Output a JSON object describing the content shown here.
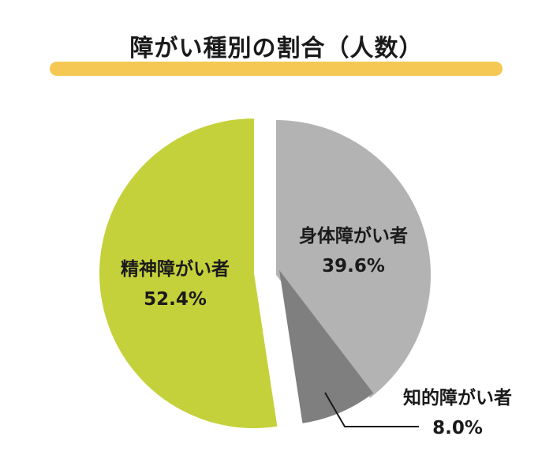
{
  "chart_data": {
    "type": "pie",
    "title": "障がい種別の割合（人数）",
    "slices": [
      {
        "label": "身体障がい者",
        "value": 39.6,
        "value_label": "39.6%",
        "color": "#b3b3b3"
      },
      {
        "label": "知的障がい者",
        "value": 8.0,
        "value_label": "8.0%",
        "color": "#7f7f7f"
      },
      {
        "label": "精神障がい者",
        "value": 52.4,
        "value_label": "52.4%",
        "color": "#c5d13b"
      }
    ]
  },
  "colors": {
    "title_bar": "#f5c854",
    "text": "#1a1a1a",
    "leader_line": "#1a1a1a"
  }
}
